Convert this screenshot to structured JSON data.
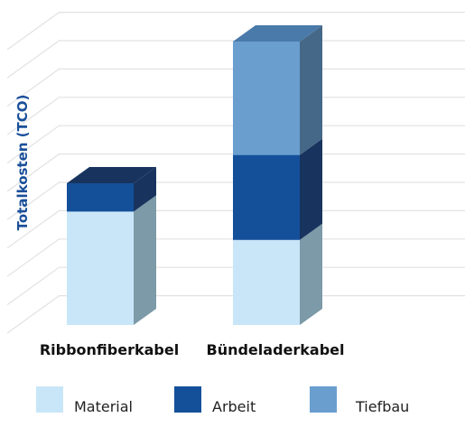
{
  "chart_data": {
    "type": "bar",
    "stacked": true,
    "style": "3d",
    "title": "",
    "xlabel": "",
    "ylabel": "Totalkosten (TCO)",
    "ylim": [
      0,
      10
    ],
    "y_ticks_visible": false,
    "grid": true,
    "legend_position": "bottom",
    "categories": [
      "Ribbonfiberkabel",
      "Bündeladerkabel"
    ],
    "series": [
      {
        "name": "Material",
        "values": [
          4.0,
          3.0
        ],
        "color": "#c8e6f8",
        "side_color": "#7c9aa8"
      },
      {
        "name": "Arbeit",
        "values": [
          1.0,
          3.0
        ],
        "color": "#14509a",
        "side_color": "#18345e"
      },
      {
        "name": "Tiefbau",
        "values": [
          0.0,
          4.0
        ],
        "color": "#699ecf",
        "side_color": "#466888"
      }
    ],
    "top_color": "#4a7aaa"
  }
}
